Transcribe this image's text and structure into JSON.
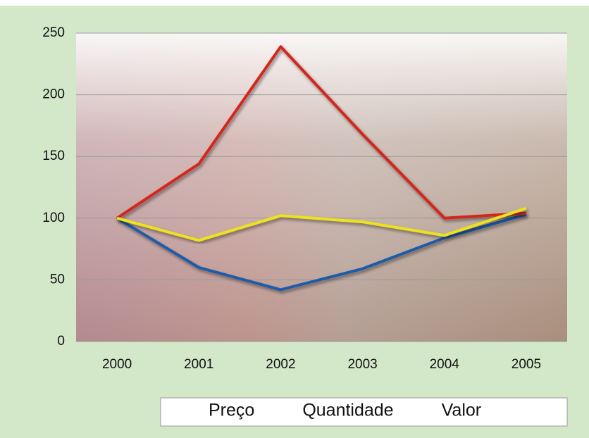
{
  "chart_data": {
    "type": "line",
    "categories": [
      "2000",
      "2001",
      "2002",
      "2003",
      "2004",
      "2005"
    ],
    "series": [
      {
        "name": "Preço",
        "color": "#1f5ca8",
        "values": [
          100,
          60,
          42,
          59,
          84,
          103
        ]
      },
      {
        "name": "Quantidade",
        "color": "#d4281a",
        "values": [
          100,
          144,
          239,
          168,
          100,
          104
        ]
      },
      {
        "name": "Valor",
        "color": "#eee21c",
        "values": [
          100,
          82,
          102,
          97,
          86,
          108
        ]
      }
    ],
    "ylim": [
      0,
      250
    ],
    "yticks": [
      0,
      50,
      100,
      150,
      200,
      250
    ],
    "grid": true,
    "legend": "bottom"
  }
}
